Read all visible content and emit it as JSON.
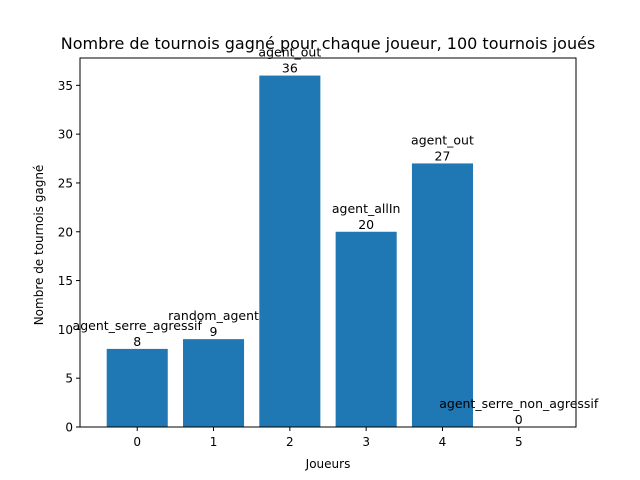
{
  "chart_data": {
    "type": "bar",
    "title": "Nombre de tournois gagné pour chaque joueur, 100 tournois joués",
    "xlabel": "Joueurs",
    "ylabel": "Nombre de tournois gagné",
    "categories": [
      "0",
      "1",
      "2",
      "3",
      "4",
      "5"
    ],
    "values": [
      8,
      9,
      36,
      20,
      27,
      0
    ],
    "bar_labels": [
      "agent_serre_agressif",
      "random_agent",
      "agent_out",
      "agent_allIn",
      "agent_out",
      "agent_serre_non_agressif"
    ],
    "yticks": [
      0,
      5,
      10,
      15,
      20,
      25,
      30,
      35
    ],
    "xlim": [
      -0.75,
      5.75
    ],
    "ylim": [
      0,
      37.8
    ],
    "bar_color": "#1f77b4",
    "grid": false,
    "legend": "none"
  }
}
